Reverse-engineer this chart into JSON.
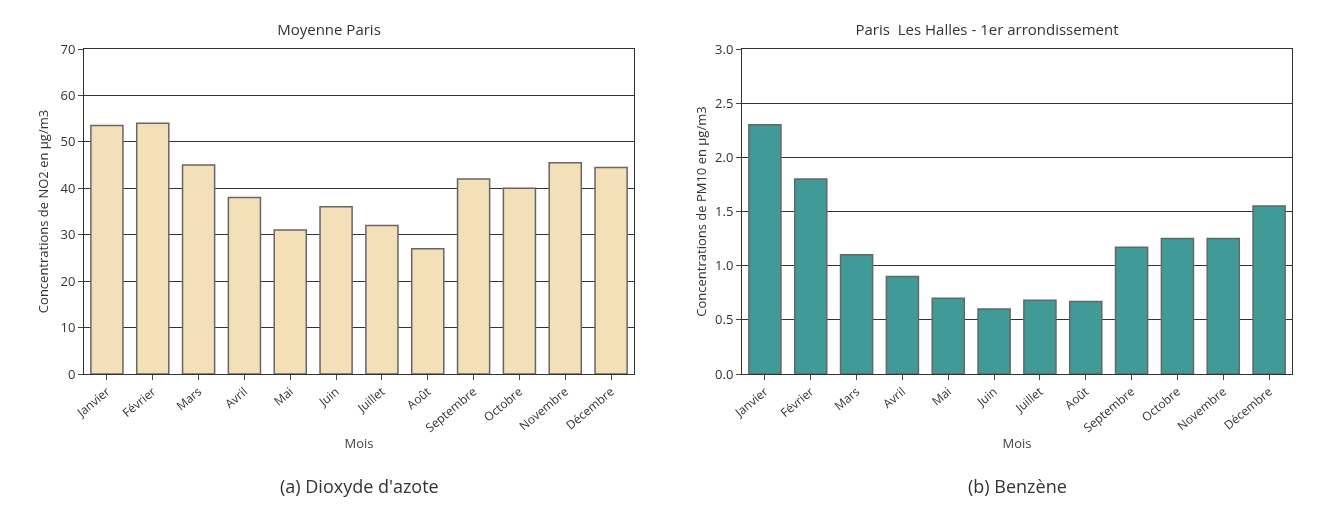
{
  "chart_data": [
    {
      "type": "bar",
      "title": "Moyenne Paris",
      "xlabel": "Mois",
      "ylabel": "Concentrations de NO2 en µg/m3",
      "categories": [
        "Janvier",
        "Février",
        "Mars",
        "Avril",
        "Mai",
        "Juin",
        "Juillet",
        "Août",
        "Septembre",
        "Octobre",
        "Novembre",
        "Décembre"
      ],
      "values": [
        53.5,
        54,
        45,
        38,
        31,
        36,
        32,
        27,
        42,
        40,
        45.5,
        44.5
      ],
      "color": "#f3dfb8",
      "ylim": [
        0,
        70
      ],
      "yticks": [
        0,
        10,
        20,
        30,
        40,
        50,
        60,
        70
      ],
      "grid": "y",
      "annotations": [
        "(a) Dioxyde d'azote"
      ]
    },
    {
      "type": "bar",
      "title": "Paris  Les Halles - 1er arrondissement",
      "xlabel": "Mois",
      "ylabel": "Concentrations de PM10 en µg/m3",
      "categories": [
        "Janvier",
        "Février",
        "Mars",
        "Avril",
        "Mai",
        "Juin",
        "Juillet",
        "Août",
        "Septembre",
        "Octobre",
        "Novembre",
        "Décembre"
      ],
      "values": [
        2.3,
        1.8,
        1.1,
        0.9,
        0.7,
        0.6,
        0.68,
        0.67,
        1.17,
        1.25,
        1.25,
        1.55
      ],
      "color": "#3f9a98",
      "ylim": [
        0,
        3
      ],
      "yticks": [
        {
          "value": 0,
          "label": "0.0"
        },
        {
          "value": 0.5,
          "label": "0.5"
        },
        {
          "value": 1,
          "label": "1.0"
        },
        {
          "value": 1.5,
          "label": "1.5"
        },
        {
          "value": 2,
          "label": "2.0"
        },
        {
          "value": 2.5,
          "label": "2.5"
        },
        {
          "value": 3,
          "label": "3.0"
        }
      ],
      "grid": "y",
      "annotations": [
        "(b) Benzène"
      ]
    }
  ]
}
